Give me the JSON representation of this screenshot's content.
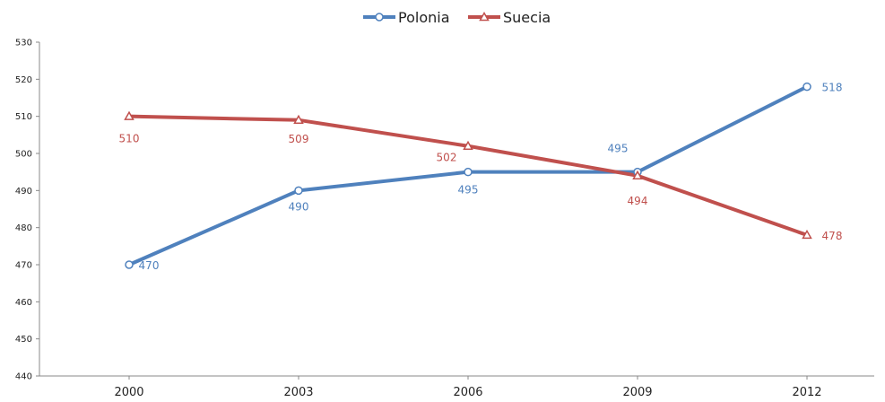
{
  "chart_data": {
    "type": "line",
    "title": "",
    "xlabel": "",
    "ylabel": "",
    "x": [
      "2000",
      "2003",
      "2006",
      "2009",
      "2012"
    ],
    "ylim": [
      440,
      530
    ],
    "yticks": [
      "440",
      "450",
      "460",
      "470",
      "480",
      "490",
      "500",
      "510",
      "520",
      "530"
    ],
    "grid": false,
    "legend_position": "top-center",
    "series": [
      {
        "name": "Polonia",
        "color": "#4f81bd",
        "marker": "circle",
        "values": [
          470,
          490,
          495,
          495,
          518
        ],
        "labels": [
          "470",
          "490",
          "495",
          "495",
          "518"
        ]
      },
      {
        "name": "Suecia",
        "color": "#c0504d",
        "marker": "triangle",
        "values": [
          510,
          509,
          502,
          494,
          478
        ],
        "labels": [
          "510",
          "509",
          "502",
          "494",
          "478"
        ]
      }
    ]
  }
}
